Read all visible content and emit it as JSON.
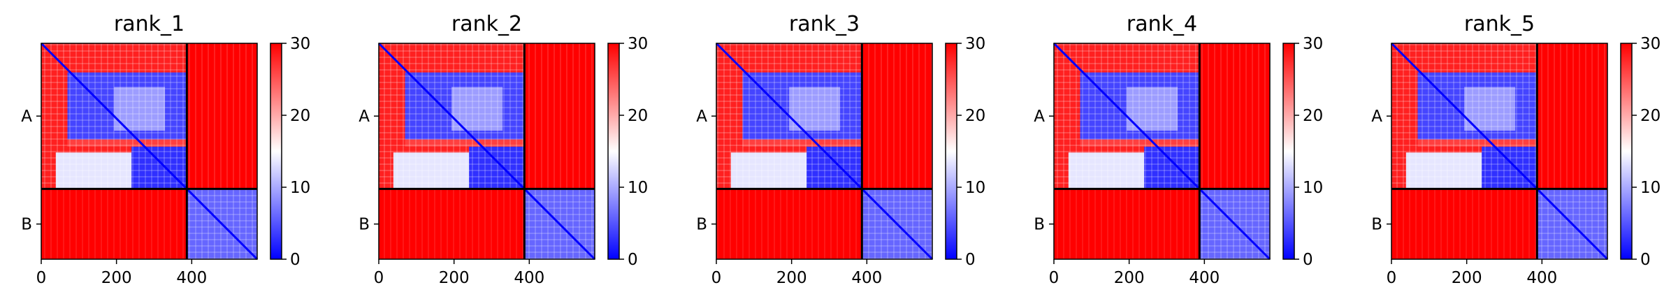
{
  "chart_data": {
    "type": "heatmap",
    "colormap": {
      "low": "#0000ff",
      "mid": "#ffffff",
      "high": "#ff0000"
    },
    "value_range": [
      0,
      30
    ],
    "colorbar_ticks": [
      "0",
      "10",
      "20",
      "30"
    ],
    "x_ticks": [
      "0",
      "200",
      "400"
    ],
    "x_tick_values": [
      0,
      200,
      400
    ],
    "x_range": [
      0,
      574
    ],
    "chain_labels": [
      "A",
      "B"
    ],
    "chain_lengths": [
      387,
      187
    ],
    "block_mean_values": {
      "A-A": 12,
      "A-B": 30,
      "B-A": 30,
      "B-B": 6
    },
    "panels": [
      {
        "title": "rank_1"
      },
      {
        "title": "rank_2"
      },
      {
        "title": "rank_3"
      },
      {
        "title": "rank_4"
      },
      {
        "title": "rank_5"
      }
    ]
  }
}
